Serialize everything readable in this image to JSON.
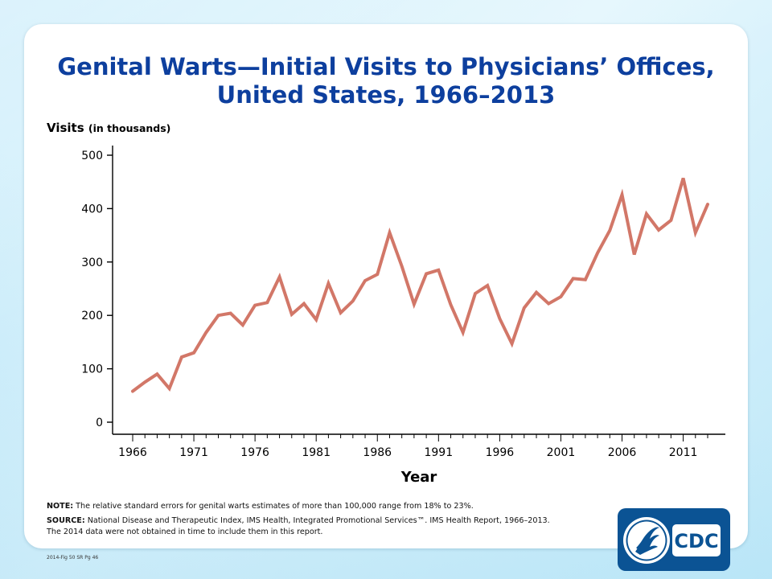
{
  "title_line1": "Genital Warts—Initial Visits to Physicians’ Offices,",
  "title_line2": "United States, 1966–2013",
  "note_label": "NOTE:",
  "note_text": " The relative standard errors for genital warts estimates of more than 100,000 range from 18% to 23%.",
  "source_label": "SOURCE:",
  "source_text": " National Disease and Therapeutic Index, IMS Health, Integrated Promotional Services™. IMS Health Report, 1966–2013.",
  "source_text2": "The 2014 data were not obtained in time to include them in this report.",
  "footer_code": "2014-Fig 50 SR Pg 46",
  "logo_text": "CDC",
  "colors": {
    "line": "#d27768",
    "title": "#0d3f9e",
    "logo": "#0b5394"
  },
  "chart_data": {
    "type": "line",
    "title": "Genital Warts—Initial Visits to Physicians’ Offices, United States, 1966–2013",
    "ylabel_main": "Visits",
    "ylabel_unit": "(in thousands)",
    "xlabel": "Year",
    "ylim": [
      0,
      500
    ],
    "xlim": [
      1966,
      2013
    ],
    "yticks": [
      0,
      100,
      200,
      300,
      400,
      500
    ],
    "xticks": [
      1966,
      1971,
      1976,
      1981,
      1986,
      1991,
      1996,
      2001,
      2006,
      2011
    ],
    "grid": false,
    "x": [
      1966,
      1967,
      1968,
      1969,
      1970,
      1971,
      1972,
      1973,
      1974,
      1975,
      1976,
      1977,
      1978,
      1979,
      1980,
      1981,
      1982,
      1983,
      1984,
      1985,
      1986,
      1987,
      1988,
      1989,
      1990,
      1991,
      1992,
      1993,
      1994,
      1995,
      1996,
      1997,
      1998,
      1999,
      2000,
      2001,
      2002,
      2003,
      2004,
      2005,
      2006,
      2007,
      2008,
      2009,
      2010,
      2011,
      2012,
      2013
    ],
    "series": [
      {
        "values": [
          58,
          75,
          90,
          63,
          122,
          130,
          168,
          200,
          204,
          182,
          219,
          224,
          272,
          202,
          222,
          192,
          260,
          205,
          227,
          265,
          277,
          355,
          292,
          221,
          278,
          285,
          220,
          168,
          241,
          256,
          194,
          147,
          214,
          243,
          222,
          235,
          269,
          267,
          317,
          359,
          426,
          314,
          390,
          360,
          378,
          457,
          355,
          408
        ]
      }
    ]
  }
}
